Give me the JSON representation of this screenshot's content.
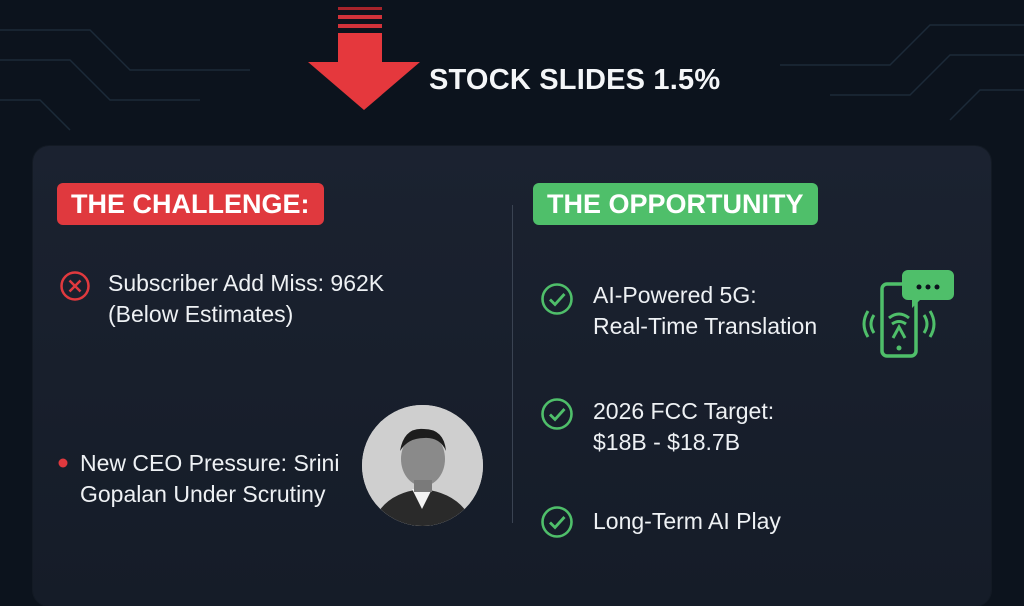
{
  "headline": "STOCK SLIDES 1.5%",
  "challenge": {
    "title": "THE CHALLENGE:",
    "items": [
      {
        "line1": "Subscriber Add Miss: 962K",
        "line2": "(Below Estimates)",
        "icon": "x-circle-icon"
      },
      {
        "line1": "New CEO Pressure: Srini",
        "line2": "Gopalan Under Scrutiny",
        "icon": "bullet-dot-icon"
      }
    ]
  },
  "opportunity": {
    "title": "THE OPPORTUNITY",
    "items": [
      {
        "line1": "AI-Powered 5G:",
        "line2": "Real-Time Translation",
        "icon": "check-circle-icon"
      },
      {
        "line1": "2026 FCC Target:",
        "line2": "$18B - $18.7B",
        "icon": "check-circle-icon"
      },
      {
        "line1": "Long-Term AI Play",
        "icon": "check-circle-icon"
      }
    ]
  },
  "colors": {
    "red": "#e0393e",
    "green": "#4fbf6a",
    "background": "#0c131d",
    "panel": "#1b2230"
  }
}
